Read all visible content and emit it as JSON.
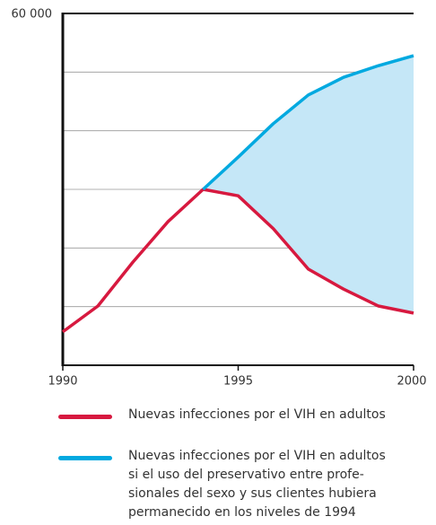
{
  "chart_data": {
    "type": "line",
    "x": [
      1990,
      1991,
      1992,
      1993,
      1994,
      1995,
      1996,
      1997,
      1998,
      1999,
      2000
    ],
    "series": [
      {
        "name": "Nuevas infecciones por el VIH en adultos",
        "color": "#d7193f",
        "values": [
          5700,
          10100,
          17600,
          24500,
          30000,
          28900,
          23300,
          16400,
          13000,
          10100,
          8900
        ]
      },
      {
        "name": "Nuevas infecciones por el VIH en adultos\nsi el uso del preservativo entre profe-\nsionales del sexo y sus clientes hubiera\npermanecido en los niveles de 1994",
        "color": "#00a9e0",
        "values": [
          null,
          null,
          null,
          null,
          30000,
          35500,
          41200,
          46100,
          49100,
          51100,
          52800
        ]
      }
    ],
    "area_color": "#c5e7f7",
    "xlim": [
      1990,
      2000
    ],
    "xticks": [
      1990,
      1995,
      2000
    ],
    "ylim": [
      0,
      60000
    ],
    "yticks": [
      {
        "value": 60000,
        "label": "60 000"
      }
    ],
    "ygrid": [
      10000,
      20000,
      30000,
      40000,
      50000
    ],
    "grid": true
  }
}
